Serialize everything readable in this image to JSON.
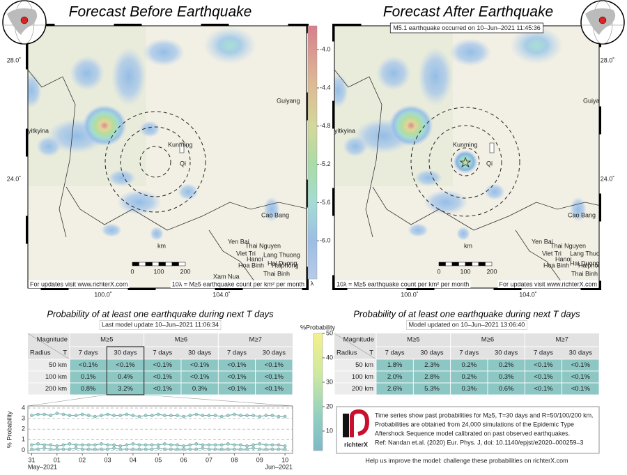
{
  "maps": [
    {
      "title": "Forecast Before Earthquake",
      "lat_labels": [
        "28.0˚",
        "24.0˚"
      ],
      "lon_labels": [
        "100.0˚",
        "104.0˚"
      ],
      "places": [
        "yitkyina",
        "Kunming",
        "Qi",
        "Guiyang",
        "Cao Bang",
        "Yen Bai",
        "Thai Nguyen",
        "Viet Tri",
        "Hanoi",
        "Lang Thuong",
        "Hai Duong",
        "Haiphong",
        "Hoa Binh",
        "Thai Binh",
        "Xam Nua"
      ],
      "scale_unit": "km",
      "scale_ticks": [
        0,
        100,
        200
      ],
      "footer_left": "For updates visit www.richterX.com",
      "footer_right": "10λ = M≥5 earthquake count per km² per month"
    },
    {
      "title": "Forecast After Earthquake",
      "banner": "M5.1 earthquake occurred on 10–Jun–2021 11:45:36",
      "lat_labels": [
        "28.0˚",
        "24.0˚"
      ],
      "lon_labels": [
        "100.0˚",
        "104.0˚"
      ],
      "places": [
        "yitkyina",
        "Kunming",
        "Qi",
        "Guiyang",
        "Cao Bang",
        "Yen Bai",
        "Thai Nguyen",
        "Viet Tri",
        "Hanoi",
        "Lang Thuong",
        "Hai Duong",
        "Haiphong",
        "Hoa Binh",
        "Thai Binh"
      ],
      "scale_unit": "km",
      "scale_ticks": [
        0,
        100,
        200
      ],
      "footer_left": "10λ = M≥5 earthquake count per km² per month",
      "footer_right": "For updates visit www.richterX.com"
    }
  ],
  "lambda_colorbar": {
    "lim": [
      -6.4,
      -3.75
    ],
    "label": "λ",
    "ticks": [
      {
        "value": -4.0,
        "label": "-4.0"
      },
      {
        "value": -4.4,
        "label": "-4.4"
      },
      {
        "value": -4.8,
        "label": "-4.8"
      },
      {
        "value": -5.2,
        "label": "-5.2"
      },
      {
        "value": -5.6,
        "label": "-5.6"
      },
      {
        "value": -6.0,
        "label": "-6.0"
      }
    ]
  },
  "tables": [
    {
      "title": "Probability of at least one earthquake during next T days",
      "subtitle": "Last model update 10–Jun–2021 11:06:34",
      "corner_top": "Magnitude",
      "corner_left": "Radius",
      "corner_right": "T",
      "magnitudes": [
        "M≥5",
        "M≥6",
        "M≥7"
      ],
      "periods": [
        "7 days",
        "30 days"
      ],
      "rows": [
        {
          "radius": "50 km",
          "cells": [
            "<0.1%",
            "<0.1%",
            "<0.1%",
            "<0.1%",
            "<0.1%",
            "<0.1%"
          ]
        },
        {
          "radius": "100 km",
          "cells": [
            "0.1%",
            "0.4%",
            "<0.1%",
            "<0.1%",
            "<0.1%",
            "<0.1%"
          ]
        },
        {
          "radius": "200 km",
          "cells": [
            "0.8%",
            "3.2%",
            "<0.1%",
            "0.3%",
            "<0.1%",
            "<0.1%"
          ]
        }
      ]
    },
    {
      "title": "Probability of at least one earthquake during next T days",
      "subtitle": "Model updated on 10–Jun–2021 13:06:40",
      "corner_top": "Magnitude",
      "corner_left": "Radius",
      "corner_right": "T",
      "magnitudes": [
        "M≥5",
        "M≥6",
        "M≥7"
      ],
      "periods": [
        "7 days",
        "30 days"
      ],
      "rows": [
        {
          "radius": "50 km",
          "cells": [
            "1.8%",
            "2.3%",
            "0.2%",
            "0.2%",
            "<0.1%",
            "<0.1%"
          ]
        },
        {
          "radius": "100 km",
          "cells": [
            "2.0%",
            "2.8%",
            "0.2%",
            "0.3%",
            "<0.1%",
            "<0.1%"
          ]
        },
        {
          "radius": "200 km",
          "cells": [
            "2.6%",
            "5.3%",
            "0.3%",
            "0.6%",
            "<0.1%",
            "<0.1%"
          ]
        }
      ]
    }
  ],
  "probability_colorbar": {
    "label": "%Probability",
    "lim": [
      2,
      50
    ],
    "ticks": [
      10,
      20,
      30,
      40,
      50
    ]
  },
  "chart_data": {
    "type": "line",
    "y_label": "% Probability",
    "x": [
      0,
      0.25,
      0.5,
      0.75,
      1,
      1.25,
      1.5,
      1.75,
      2,
      2.25,
      2.5,
      2.75,
      3,
      3.25,
      3.5,
      3.75,
      4,
      4.25,
      4.5,
      4.75,
      5,
      5.25,
      5.5,
      5.75,
      6,
      6.25,
      6.5,
      6.75,
      7,
      7.25,
      7.5,
      7.75,
      8,
      8.25,
      8.5,
      8.75,
      9,
      9.25,
      9.5,
      9.75,
      10
    ],
    "xlim": [
      -0.15,
      10.3
    ],
    "xticks": [
      {
        "value": 0,
        "label": "31"
      },
      {
        "value": 1,
        "label": "01"
      },
      {
        "value": 2,
        "label": "02"
      },
      {
        "value": 3,
        "label": "03"
      },
      {
        "value": 4,
        "label": "04"
      },
      {
        "value": 5,
        "label": "05"
      },
      {
        "value": 6,
        "label": "06"
      },
      {
        "value": 7,
        "label": "07"
      },
      {
        "value": 8,
        "label": "08"
      },
      {
        "value": 9,
        "label": "09"
      },
      {
        "value": 10,
        "label": "10"
      }
    ],
    "period_labels": [
      "May–2021",
      "Jun–2021"
    ],
    "ylim": [
      -0.3,
      4.2
    ],
    "yticks": [
      0,
      1,
      2,
      3,
      4
    ],
    "grid": true,
    "series": [
      {
        "color": "#5f9f9b",
        "values": [
          3.3,
          3.4,
          3.4,
          3.3,
          3.5,
          3.4,
          3.3,
          3.3,
          3.4,
          3.3,
          3.2,
          3.3,
          3.4,
          3.3,
          3.3,
          3.4,
          3.3,
          3.2,
          3.3,
          3.3,
          3.4,
          3.3,
          3.3,
          3.3,
          3.2,
          3.3,
          3.4,
          3.3,
          3.3,
          3.3,
          3.2,
          3.3,
          3.4,
          3.3,
          3.3,
          3.3,
          3.2,
          3.3,
          3.3,
          3.2,
          3.2
        ]
      },
      {
        "color": "#5f9f9b",
        "values": [
          0.5,
          0.6,
          0.5,
          0.5,
          0.4,
          0.5,
          0.6,
          0.5,
          0.5,
          0.5,
          0.5,
          0.6,
          0.5,
          0.5,
          0.4,
          0.5,
          0.6,
          0.5,
          0.5,
          0.5,
          0.5,
          0.6,
          0.5,
          0.5,
          0.4,
          0.5,
          0.6,
          0.5,
          0.5,
          0.5,
          0.5,
          0.6,
          0.5,
          0.5,
          0.4,
          0.5,
          0.6,
          0.5,
          0.5,
          0.5,
          0.4
        ]
      },
      {
        "color": "#5f9f9b",
        "values": [
          0.1,
          0.1,
          0.2,
          0.1,
          0.1,
          0.1,
          0.1,
          0.2,
          0.1,
          0.1,
          0.1,
          0.1,
          0.1,
          0.2,
          0.1,
          0.1,
          0.1,
          0.1,
          0.1,
          0.1,
          0.2,
          0.1,
          0.1,
          0.1,
          0.1,
          0.1,
          0.1,
          0.2,
          0.1,
          0.1,
          0.1,
          0.1,
          0.1,
          0.1,
          0.1,
          0.2,
          0.1,
          0.1,
          0.1,
          0.1,
          0.1
        ]
      }
    ]
  },
  "info": {
    "lines": [
      "Time series show past probabilities for M≥5, T=30 days and R=50/100/200 km.",
      "Probabilities are obtained from 24,000 simulations of the Epidemic Type",
      "Aftershock Sequence model calibrated on past observed earthquakes.",
      "Ref: Nandan et.al. (2020) Eur. Phys. J, doi: 10.1140/epjst/e2020–000259–3"
    ],
    "logo": "richterX"
  },
  "footer": "Help us improve the model: challenge these probabilities on richterX.com"
}
